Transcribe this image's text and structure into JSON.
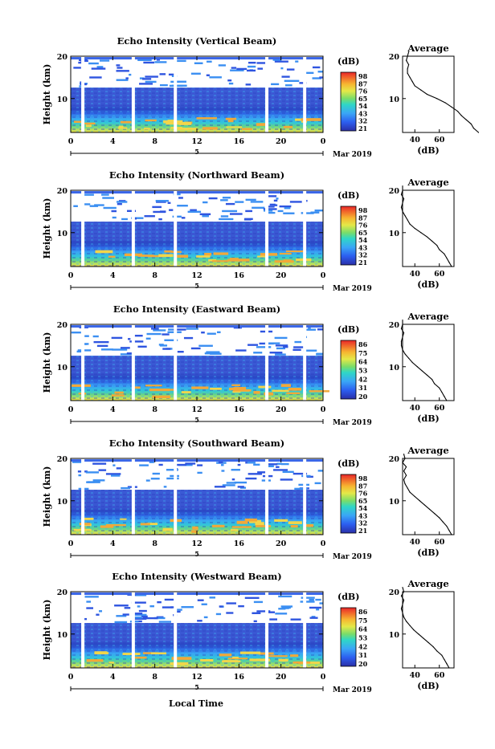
{
  "panels": [
    {
      "title": "Echo Intensity (Vertical Beam)",
      "colorbar_labels": [
        "98",
        "87",
        "76",
        "65",
        "54",
        "43",
        "32",
        "21"
      ],
      "date_marker": "5",
      "date_label": "Mar 2019",
      "profile_xlabels": [
        "40",
        "60"
      ],
      "profile": [
        [
          92,
          1.0
        ],
        [
          88,
          2.0
        ],
        [
          86,
          3.0
        ],
        [
          82,
          4.0
        ],
        [
          78,
          5.0
        ],
        [
          75,
          6.0
        ],
        [
          70,
          7.0
        ],
        [
          65,
          8.0
        ],
        [
          58,
          9.0
        ],
        [
          50,
          10.0
        ],
        [
          45,
          11.0
        ],
        [
          40,
          12.0
        ],
        [
          38,
          13.0
        ],
        [
          36,
          14.0
        ],
        [
          34,
          15.0
        ],
        [
          34,
          16.0
        ],
        [
          35,
          17.0
        ],
        [
          33,
          18.0
        ],
        [
          34,
          19.0
        ],
        [
          35,
          20.0
        ]
      ]
    },
    {
      "title": "Echo Intensity (Northward Beam)",
      "colorbar_labels": [
        "98",
        "87",
        "76",
        "65",
        "54",
        "43",
        "32",
        "21"
      ],
      "date_marker": "5",
      "date_label": "Mar 2019",
      "profile_xlabels": [
        "40",
        "60"
      ],
      "profile": [
        [
          70,
          1.0
        ],
        [
          68,
          2.0
        ],
        [
          66,
          3.0
        ],
        [
          64,
          4.0
        ],
        [
          60,
          5.0
        ],
        [
          58,
          6.0
        ],
        [
          54,
          7.0
        ],
        [
          50,
          8.0
        ],
        [
          45,
          9.0
        ],
        [
          40,
          10.0
        ],
        [
          36,
          11.0
        ],
        [
          34,
          12.0
        ],
        [
          32,
          13.0
        ],
        [
          30,
          14.0
        ],
        [
          29,
          15.0
        ],
        [
          30,
          16.0
        ],
        [
          31,
          17.0
        ],
        [
          29,
          18.0
        ],
        [
          30,
          19.0
        ],
        [
          30,
          20.0
        ]
      ]
    },
    {
      "title": "Echo Intensity (Eastward Beam)",
      "colorbar_labels": [
        "86",
        "75",
        "64",
        "53",
        "42",
        "31",
        "20"
      ],
      "date_marker": "5",
      "date_label": "Mar 2019",
      "profile_xlabels": [
        "40",
        "60"
      ],
      "profile": [
        [
          66,
          1.0
        ],
        [
          64,
          2.0
        ],
        [
          62,
          3.0
        ],
        [
          60,
          4.0
        ],
        [
          56,
          5.0
        ],
        [
          54,
          6.0
        ],
        [
          50,
          7.0
        ],
        [
          46,
          8.0
        ],
        [
          42,
          9.0
        ],
        [
          38,
          10.0
        ],
        [
          35,
          11.0
        ],
        [
          32,
          12.0
        ],
        [
          30,
          13.0
        ],
        [
          29,
          14.0
        ],
        [
          29,
          15.0
        ],
        [
          30,
          16.0
        ],
        [
          31,
          17.0
        ],
        [
          29,
          18.0
        ],
        [
          30,
          19.0
        ],
        [
          30,
          20.0
        ]
      ]
    },
    {
      "title": "Echo Intensity (Southward Beam)",
      "colorbar_labels": [
        "98",
        "87",
        "76",
        "65",
        "54",
        "43",
        "32",
        "21"
      ],
      "date_marker": "5",
      "date_label": "Mar 2019",
      "profile_xlabels": [
        "40",
        "60"
      ],
      "profile": [
        [
          70,
          1.0
        ],
        [
          68,
          2.0
        ],
        [
          66,
          3.0
        ],
        [
          63,
          4.0
        ],
        [
          60,
          5.0
        ],
        [
          56,
          6.0
        ],
        [
          52,
          7.0
        ],
        [
          48,
          8.0
        ],
        [
          44,
          9.0
        ],
        [
          40,
          10.0
        ],
        [
          36,
          11.0
        ],
        [
          34,
          12.0
        ],
        [
          32,
          13.0
        ],
        [
          31,
          14.0
        ],
        [
          33,
          15.0
        ],
        [
          31,
          16.0
        ],
        [
          33,
          17.0
        ],
        [
          30,
          18.0
        ],
        [
          32,
          19.0
        ],
        [
          31,
          20.0
        ]
      ]
    },
    {
      "title": "Echo Intensity (Westward Beam)",
      "colorbar_labels": [
        "86",
        "75",
        "64",
        "53",
        "42",
        "31",
        "20"
      ],
      "date_marker": "5",
      "date_label": "Mar 2019",
      "profile_xlabels": [
        "40",
        "60"
      ],
      "profile": [
        [
          68,
          1.0
        ],
        [
          66,
          2.0
        ],
        [
          64,
          3.0
        ],
        [
          62,
          4.0
        ],
        [
          58,
          5.0
        ],
        [
          55,
          6.0
        ],
        [
          51,
          7.0
        ],
        [
          47,
          8.0
        ],
        [
          43,
          9.0
        ],
        [
          39,
          10.0
        ],
        [
          36,
          11.0
        ],
        [
          33,
          12.0
        ],
        [
          31,
          13.0
        ],
        [
          30,
          14.0
        ],
        [
          29,
          15.0
        ],
        [
          30,
          16.0
        ],
        [
          31,
          17.0
        ],
        [
          29,
          18.0
        ],
        [
          31,
          19.0
        ],
        [
          30,
          20.0
        ]
      ]
    }
  ],
  "ylabel": "Height (km)",
  "y_ticks": [
    "20",
    "10"
  ],
  "x_ticks": [
    "0",
    "4",
    "8",
    "12",
    "16",
    "20",
    "0"
  ],
  "colorbar_unit": "(dB)",
  "profile_title": "Average",
  "profile_unit": "(dB)",
  "profile_yticks": [
    "20",
    "10"
  ],
  "xlabel_bottom": "Local Time",
  "chart_data": [
    {
      "type": "heatmap",
      "title": "Echo Intensity (Vertical Beam)",
      "xlabel": "",
      "ylabel": "Height (km)",
      "xlim": [
        0,
        24
      ],
      "ylim": [
        2,
        20
      ],
      "colorbar": {
        "unit": "(dB)",
        "ticks": [
          98,
          87,
          76,
          65,
          54,
          43,
          32,
          21
        ]
      },
      "data_gaps_hours": [
        1.0,
        5.8,
        9.8,
        18.5,
        22.1
      ]
    },
    {
      "type": "heatmap",
      "title": "Echo Intensity (Northward Beam)",
      "xlabel": "",
      "ylabel": "Height (km)",
      "xlim": [
        0,
        24
      ],
      "ylim": [
        2,
        20
      ],
      "colorbar": {
        "unit": "(dB)",
        "ticks": [
          98,
          87,
          76,
          65,
          54,
          43,
          32,
          21
        ]
      },
      "data_gaps_hours": [
        1.0,
        5.8,
        9.8,
        18.5,
        22.1
      ]
    },
    {
      "type": "heatmap",
      "title": "Echo Intensity (Eastward Beam)",
      "xlabel": "",
      "ylabel": "Height (km)",
      "xlim": [
        0,
        24
      ],
      "ylim": [
        2,
        20
      ],
      "colorbar": {
        "unit": "(dB)",
        "ticks": [
          86,
          75,
          64,
          53,
          42,
          31,
          20
        ]
      },
      "data_gaps_hours": [
        1.0,
        5.8,
        9.8,
        18.5,
        22.1
      ]
    },
    {
      "type": "heatmap",
      "title": "Echo Intensity (Southward Beam)",
      "xlabel": "",
      "ylabel": "Height (km)",
      "xlim": [
        0,
        24
      ],
      "ylim": [
        2,
        20
      ],
      "colorbar": {
        "unit": "(dB)",
        "ticks": [
          98,
          87,
          76,
          65,
          54,
          43,
          32,
          21
        ]
      },
      "data_gaps_hours": [
        1.0,
        5.8,
        9.8,
        18.5,
        22.1
      ]
    },
    {
      "type": "heatmap",
      "title": "Echo Intensity (Westward Beam)",
      "xlabel": "Local Time",
      "ylabel": "Height (km)",
      "xlim": [
        0,
        24
      ],
      "ylim": [
        2,
        20
      ],
      "colorbar": {
        "unit": "(dB)",
        "ticks": [
          86,
          75,
          64,
          53,
          42,
          31,
          20
        ]
      },
      "data_gaps_hours": [
        1.0,
        5.8,
        9.8,
        18.5,
        22.1
      ]
    },
    {
      "type": "line",
      "title": "Average",
      "xlabel": "(dB)",
      "ylabel": "",
      "xlim": [
        30,
        72
      ],
      "ylim": [
        2,
        20
      ]
    }
  ]
}
